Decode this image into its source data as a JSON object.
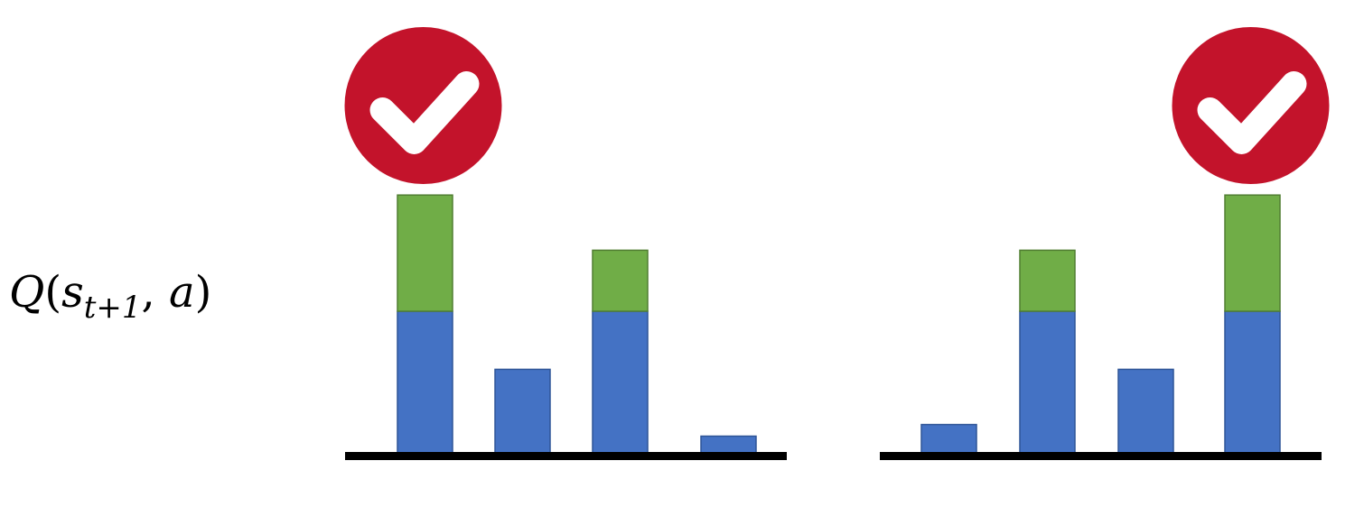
{
  "label": {
    "q": "Q",
    "open": "(",
    "s": "s",
    "sub": "t+1",
    "comma": ", ",
    "a": "a",
    "close": ")"
  },
  "colors": {
    "base": "#4472c4",
    "base_stroke": "#2f5597",
    "extra": "#70ad47",
    "extra_stroke": "#507e32",
    "axis": "#000000",
    "badge": "#c3132b",
    "check": "#ffffff"
  },
  "icons": [
    "check-circle-icon"
  ],
  "chart_data": [
    {
      "type": "bar",
      "stacked": true,
      "series": [
        {
          "values": [
            5,
            3,
            5,
            0.7
          ]
        },
        {
          "values": [
            4,
            0,
            2.1,
            0
          ]
        }
      ],
      "ylim": [
        0,
        9
      ],
      "highlight_index": 0,
      "grid": false
    },
    {
      "type": "bar",
      "stacked": true,
      "series": [
        {
          "values": [
            1.1,
            5,
            3,
            5
          ]
        },
        {
          "values": [
            0,
            2.1,
            0,
            4
          ]
        }
      ],
      "ylim": [
        0,
        9
      ],
      "highlight_index": 3,
      "grid": false
    }
  ]
}
